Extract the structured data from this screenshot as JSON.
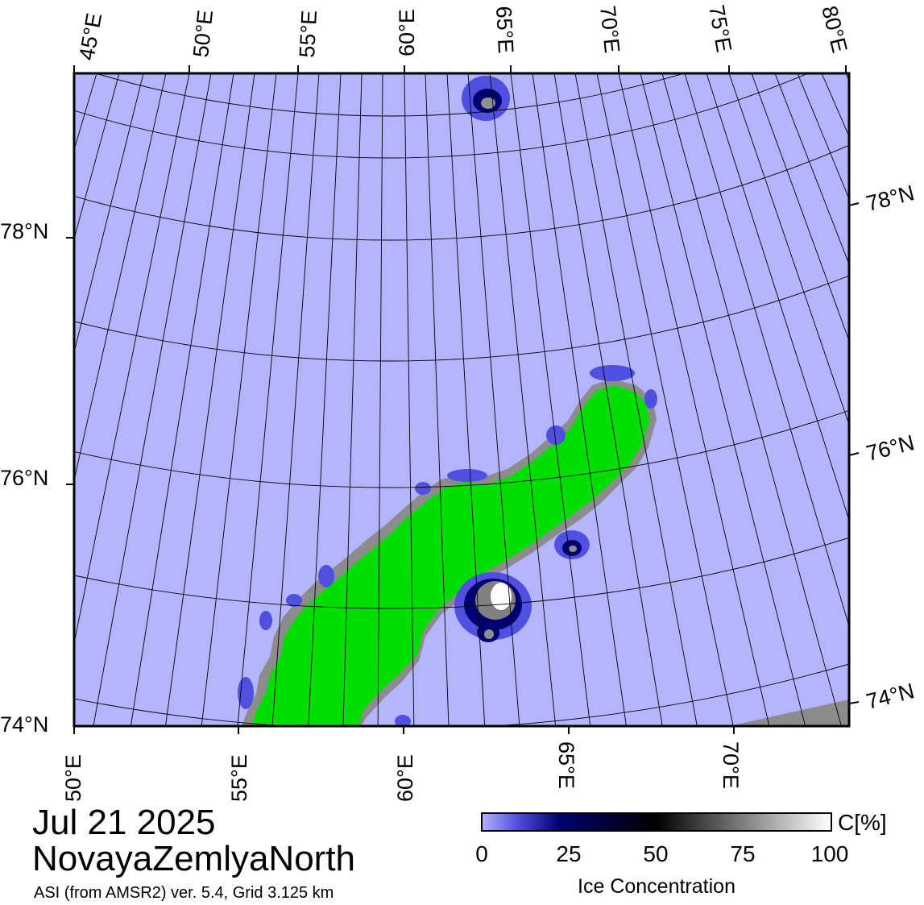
{
  "map": {
    "title_date": "Jul 21 2025",
    "region": "NovayaZemlyaNorth",
    "product": "ASI (from AMSR2) ver. 5.4,  Grid 3.125 km",
    "top_lon_labels": [
      "45°E",
      "50°E",
      "55°E",
      "60°E",
      "65°E",
      "70°E",
      "75°E",
      "80°E"
    ],
    "bottom_lon_labels": [
      "50°E",
      "55°E",
      "60°E",
      "65°E",
      "70°E"
    ],
    "left_lat_labels": [
      "78°N",
      "76°N",
      "74°N"
    ],
    "right_lat_labels": [
      "78°N",
      "76°N",
      "74°N"
    ],
    "colors": {
      "ocean": "#b4b4ff",
      "land": "#00dd00",
      "coast": "#8c8c8c",
      "ice_low": "#5050e0",
      "ice_mid": "#000070",
      "ice_high": "#ffffff"
    }
  },
  "legend": {
    "unit": "C[%]",
    "ticks": [
      "0",
      "25",
      "50",
      "75",
      "100"
    ],
    "title": "Ice Concentration"
  }
}
